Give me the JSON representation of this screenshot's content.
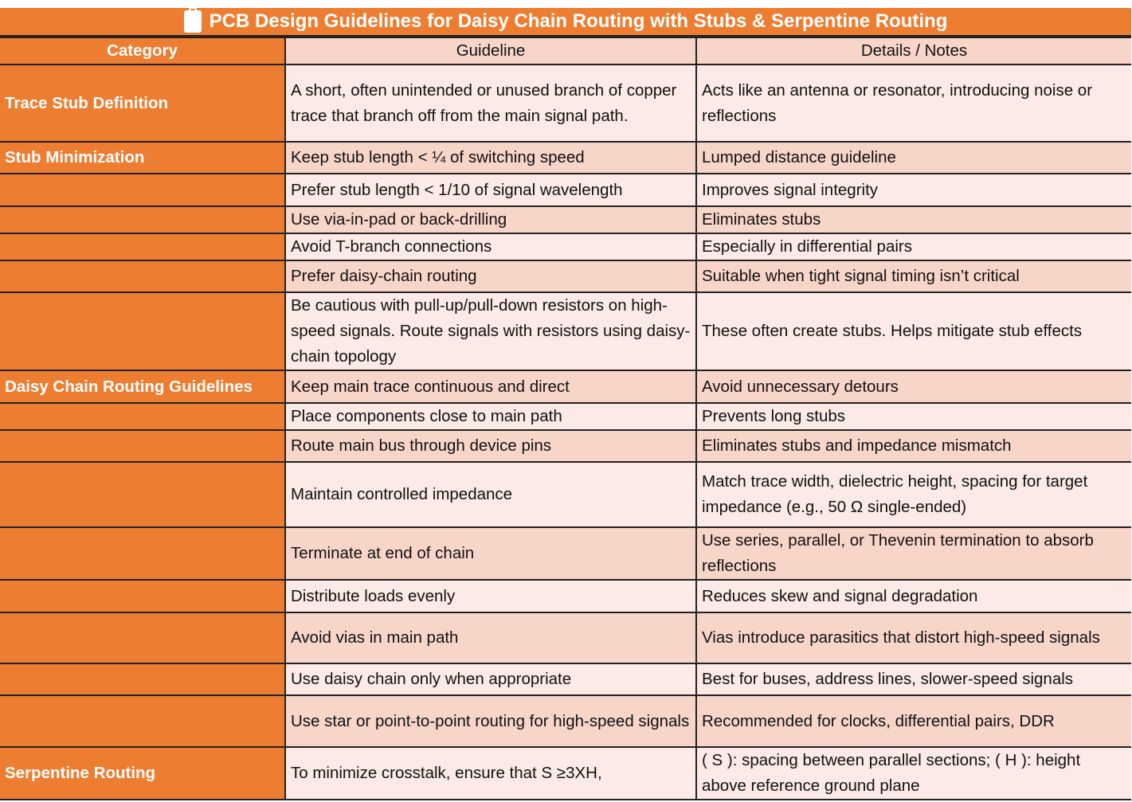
{
  "title": "PCB Design Guidelines for Daisy Chain Routing with Stubs & Serpentine Routing",
  "title_icon": "clipboard-icon",
  "colors": {
    "accent": "#ED7D31",
    "row_dark": "#F8D5C9",
    "row_light": "#FBEAE5"
  },
  "headers": [
    "Category",
    "Guideline",
    "Details / Notes"
  ],
  "rows": [
    {
      "category": "Trace Stub Definition",
      "guideline": "A short, often unintended or unused branch of copper trace that branch off from the main signal path.",
      "details": "Acts like an antenna or resonator, introducing noise or reflections"
    },
    {
      "category": "Stub Minimization",
      "guideline": "Keep stub length < ¼ of switching speed",
      "details": "Lumped distance guideline"
    },
    {
      "category": "",
      "guideline": "Prefer stub length < 1/10 of signal wavelength",
      "details": "Improves signal integrity"
    },
    {
      "category": "",
      "guideline": "Use via-in-pad or back-drilling",
      "details": "Eliminates stubs"
    },
    {
      "category": "",
      "guideline": "Avoid T-branch connections",
      "details": "Especially in differential pairs"
    },
    {
      "category": "",
      "guideline": "Prefer daisy-chain routing",
      "details": "Suitable when tight signal timing isn’t critical"
    },
    {
      "category": "",
      "guideline": "Be cautious with pull-up/pull-down resistors on high-speed signals. Route signals with resistors using daisy-chain topology",
      "details": "These often create stubs. Helps mitigate stub effects"
    },
    {
      "category": "Daisy Chain Routing Guidelines",
      "guideline": "Keep main trace continuous and direct",
      "details": "Avoid unnecessary detours"
    },
    {
      "category": "",
      "guideline": "Place components close to main path",
      "details": "Prevents long stubs"
    },
    {
      "category": "",
      "guideline": "Route main bus through device pins",
      "details": "Eliminates stubs and impedance mismatch"
    },
    {
      "category": "",
      "guideline": "Maintain controlled impedance",
      "details": "Match trace width, dielectric height, spacing for target impedance (e.g., 50 Ω single-ended)"
    },
    {
      "category": "",
      "guideline": "Terminate at end of chain",
      "details": "Use series, parallel, or Thevenin termination to absorb reflections"
    },
    {
      "category": "",
      "guideline": "Distribute loads evenly",
      "details": "Reduces skew and signal degradation"
    },
    {
      "category": "",
      "guideline": "Avoid vias in main path",
      "details": "Vias introduce parasitics that distort high-speed signals"
    },
    {
      "category": "",
      "guideline": "Use daisy chain only when appropriate",
      "details": "Best for buses, address lines, slower-speed signals"
    },
    {
      "category": "",
      "guideline": "Use star or point-to-point routing for high-speed signals",
      "details": "Recommended for clocks, differential pairs, DDR"
    },
    {
      "category": "Serpentine Routing",
      "guideline": "To minimize crosstalk, ensure that S ≥3XH,",
      "details": "( S ): spacing between  parallel sections; ( H ): height above reference ground plane"
    }
  ]
}
